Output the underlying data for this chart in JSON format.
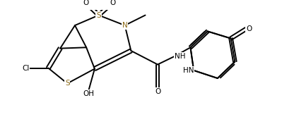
{
  "bg_color": "#ffffff",
  "bond_color": "#000000",
  "S_color": "#8B6914",
  "N_color": "#8B6914",
  "line_width": 1.4,
  "xlim": [
    0,
    10
  ],
  "ylim": [
    0,
    5
  ]
}
